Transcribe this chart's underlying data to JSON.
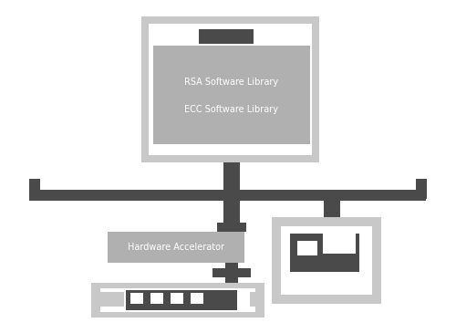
{
  "bg_color": "#ffffff",
  "colors": {
    "light_gray": "#c8c8c8",
    "medium_gray": "#b0b0b0",
    "dark_gray": "#4a4a4a",
    "white": "#ffffff"
  },
  "rsa_label": "RSA Software Library",
  "ecc_label": "ECC Software Library",
  "hw_label": "Hardware Accelerator"
}
